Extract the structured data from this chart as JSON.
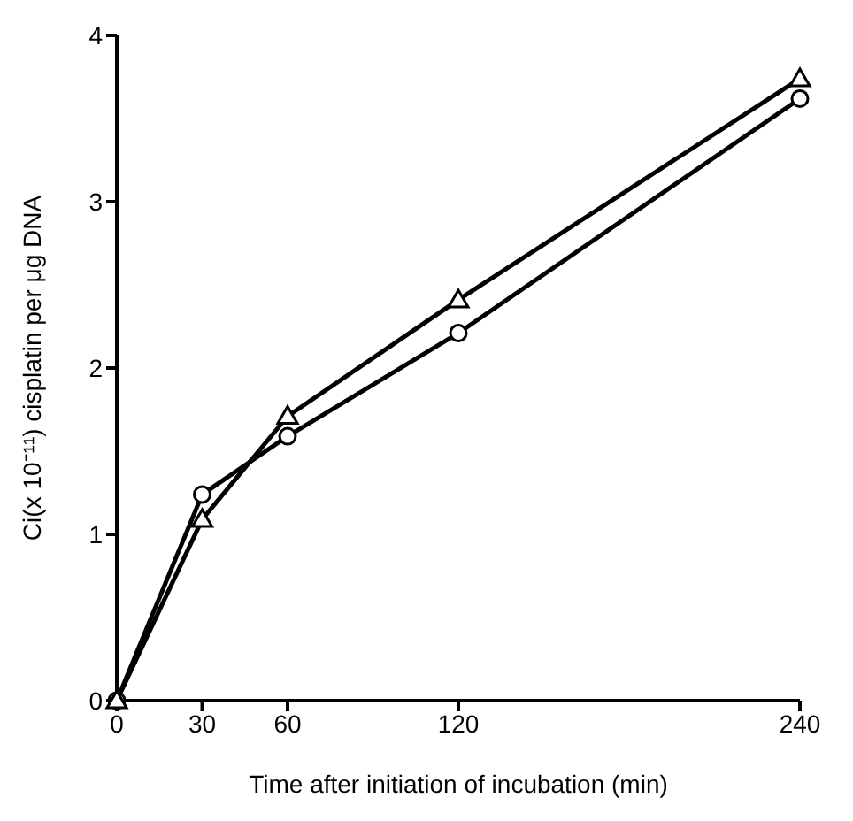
{
  "chart_data": {
    "type": "line",
    "xlabel": "Time after initiation of incubation (min)",
    "ylabel": "Ci(x 10⁻¹¹) cisplatin per μg DNA",
    "x": [
      0,
      30,
      60,
      120,
      240
    ],
    "xlim": [
      0,
      240
    ],
    "xticks": [
      0,
      30,
      60,
      120,
      240
    ],
    "ylim": [
      0,
      4
    ],
    "yticks": [
      0,
      1,
      2,
      3,
      4
    ],
    "grid": false,
    "legend": false,
    "line_style": "solid",
    "series": [
      {
        "color": "#000000",
        "marker": "circle",
        "values": [
          0,
          1.24,
          1.59,
          2.21,
          3.62
        ]
      },
      {
        "color": "#000000",
        "marker": "triangle",
        "values": [
          0,
          1.09,
          1.71,
          2.41,
          3.74
        ]
      }
    ]
  }
}
